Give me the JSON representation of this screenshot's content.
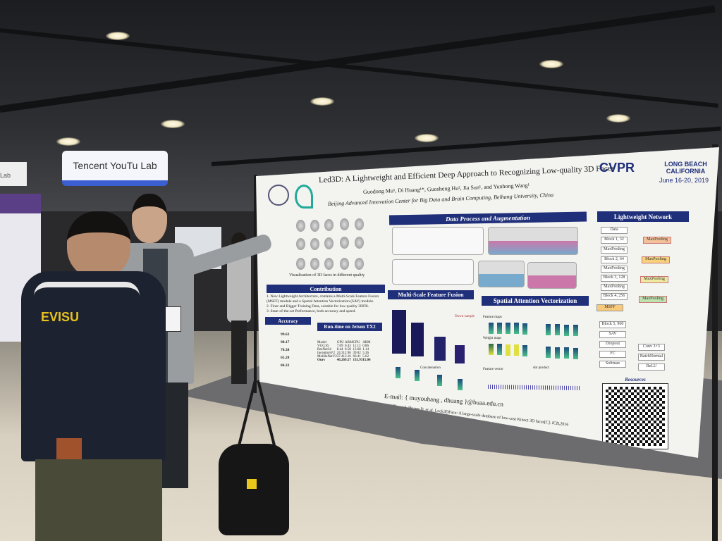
{
  "scene": {
    "banner_text": "Tencent YouTu Lab",
    "left_sign_text": "Lab",
    "jacket_text": "EVISU"
  },
  "poster": {
    "title": "Led3D: A Lightweight and Efficient Deep Approach to Recognizing Low-quality 3D Faces",
    "authors": "Guodong Mu¹, Di Huang¹*, Guosheng Hu², Jia Sun¹, and Yunhong Wang¹",
    "affiliation": "Beijing Advanced Innovation Center for Big Data and Brain Computing, Beihang University, China",
    "conference": "CVPR",
    "location": "LONG BEACH CALIFORNIA",
    "dates": "June 16-20, 2019",
    "sections": {
      "data_process": "Data Process and Augmentation",
      "lightweight": "Lightweight Network",
      "contribution": "Contribution",
      "msff": "Multi-Scale Feature Fusion",
      "sav": "Spatial Attention Vectorization",
      "accuracy": "Accuracy",
      "runtime": "Run-time on Jetson TX2",
      "resources": "Resources"
    },
    "contributions": [
      "1. New Lightweight Architecture, contains a Multi-Scale Feature Fusion (MSFF) module and a Spatial Attention Vectorization (SAV) module.",
      "2. Finer and Bigger Training Data, suitable for low-quality 3DFR.",
      "3. State-of-the-art Performance, both accuracy and speed."
    ],
    "face_caption": "Visualization of 3D faces in different quality",
    "runtime_table": {
      "headers": [
        "Model",
        "GPU",
        "ARM",
        "GPU",
        "ARM"
      ],
      "rows": [
        [
          "VGG16",
          "7.09",
          "0.43",
          "11.13",
          "0.86"
        ],
        [
          "ResNet34",
          "8.44",
          "0.58",
          "13.68",
          "1.14"
        ],
        [
          "InceptionV2",
          "24.31",
          "2.96",
          "39.02",
          "5.36"
        ],
        [
          "MobileNetV2",
          "37.41",
          "3.16",
          "60.41",
          "5.62"
        ],
        [
          "Ours",
          "46.26",
          "9.57",
          "135.93",
          "15.06"
        ]
      ]
    },
    "accuracy_values": [
      "99.62",
      "98.17",
      "78.38",
      "65.28",
      "84.22"
    ],
    "network_blocks": [
      "Data",
      "Block 1, 32",
      "MaxPooling",
      "Block 2, 64",
      "MaxPooling",
      "Block 3, 128",
      "MaxPooling",
      "Block 4, 256",
      "MSFF",
      "Block 5, 960",
      "SAV",
      "Dropout",
      "FC",
      "Softmax"
    ],
    "network_side": [
      "MaxPooling",
      "MaxPooling",
      "MaxPooling",
      "MaxPooling"
    ],
    "legend_blocks": [
      "Conv 3×3",
      "BatchNormal",
      "ReLU"
    ],
    "sav_labels": [
      "Feature maps",
      "Weight maps",
      "Feature vector",
      "dot product"
    ],
    "down_sample": "Down-sample",
    "concat": "Concatenation",
    "email": "E-mail: { muyouhang , dhuang }@buaa.edu.cn",
    "reference": "Ref: Zhang J, Huang D, et al. Lock3DFace: A large-scale database of low-cost Kinect 3D faces[C]. ICB,2016"
  }
}
